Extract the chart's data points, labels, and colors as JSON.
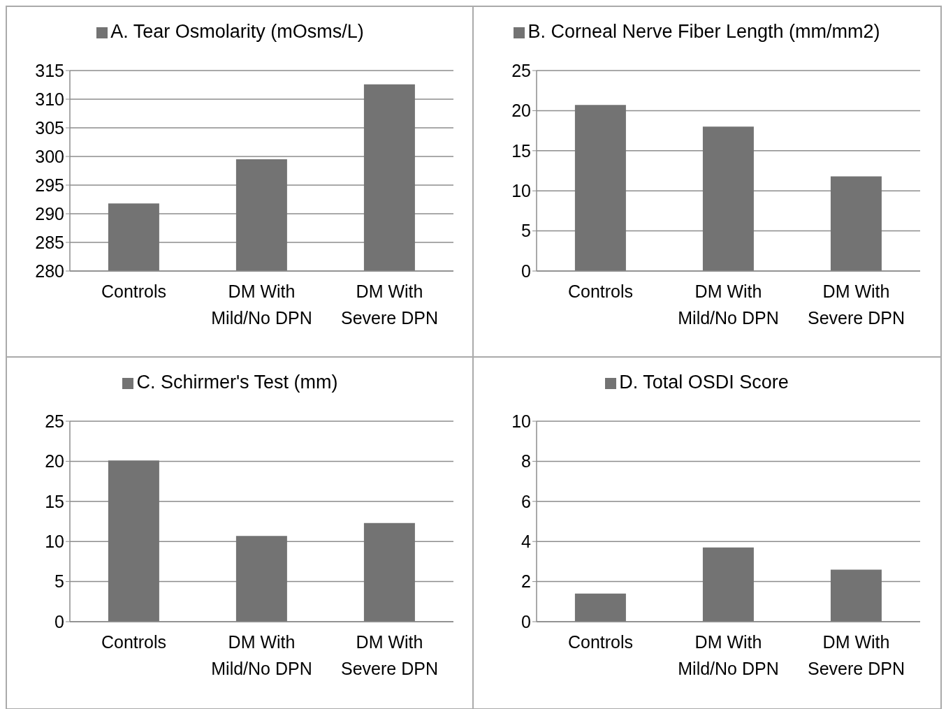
{
  "chart_data": [
    {
      "type": "bar",
      "categories": [
        "Controls",
        "DM With Mild/No DPN",
        "DM With Severe DPN"
      ],
      "series": [
        {
          "name": "A. Tear Osmolarity (mOsms/L)",
          "color": "#737373",
          "values": [
            291.8,
            299.5,
            312.6
          ]
        }
      ],
      "ylim": [
        280,
        315
      ],
      "yticks": [
        280,
        285,
        290,
        295,
        300,
        305,
        310,
        315
      ],
      "grid": "y",
      "legend": "top"
    },
    {
      "type": "bar",
      "categories": [
        "Controls",
        "DM With Mild/No DPN",
        "DM With Severe DPN"
      ],
      "series": [
        {
          "name": "B. Corneal Nerve Fiber Length (mm/mm2)",
          "color": "#737373",
          "values": [
            20.7,
            18.0,
            11.8
          ]
        }
      ],
      "ylim": [
        0,
        25
      ],
      "yticks": [
        0,
        5,
        10,
        15,
        20,
        25
      ],
      "grid": "y",
      "legend": "top"
    },
    {
      "type": "bar",
      "categories": [
        "Controls",
        "DM With Mild/No DPN",
        "DM With Severe DPN"
      ],
      "series": [
        {
          "name": "C. Schirmer's Test (mm)",
          "color": "#737373",
          "values": [
            20.1,
            10.7,
            12.3
          ]
        }
      ],
      "ylim": [
        0,
        25
      ],
      "yticks": [
        0,
        5,
        10,
        15,
        20,
        25
      ],
      "grid": "y",
      "legend": "top"
    },
    {
      "type": "bar",
      "categories": [
        "Controls",
        "DM With Mild/No DPN",
        "DM With Severe DPN"
      ],
      "series": [
        {
          "name": "D. Total OSDI Score",
          "color": "#737373",
          "values": [
            1.4,
            3.7,
            2.6
          ]
        }
      ],
      "ylim": [
        0,
        10
      ],
      "yticks": [
        0,
        2,
        4,
        6,
        8,
        10
      ],
      "grid": "y",
      "legend": "top"
    }
  ]
}
